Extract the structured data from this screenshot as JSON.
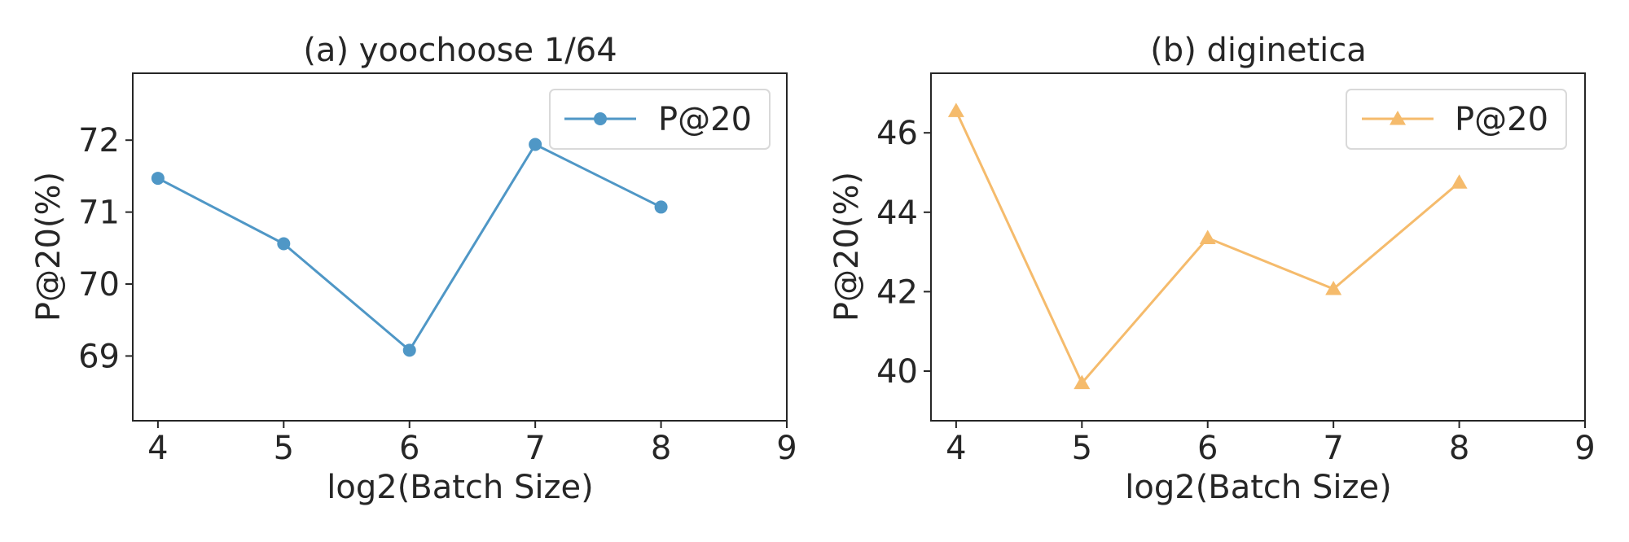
{
  "chart_data": [
    {
      "type": "line",
      "title": "(a) yoochoose 1/64",
      "xlabel": "log2(Batch Size)",
      "ylabel": "P@20(%)",
      "x": [
        4,
        5,
        6,
        7,
        8
      ],
      "series": [
        {
          "name": "P@20",
          "values": [
            71.47,
            70.56,
            69.08,
            71.94,
            71.07
          ],
          "color": "#4f97c6",
          "marker": "circle"
        }
      ],
      "xlim": [
        3.8,
        9
      ],
      "ylim": [
        68.1,
        72.93
      ],
      "xticks": [
        "4",
        "5",
        "6",
        "7",
        "8",
        "9"
      ],
      "yticks": [
        "69",
        "70",
        "71",
        "72"
      ],
      "legend": "top-right",
      "grid": false
    },
    {
      "type": "line",
      "title": "(b) diginetica",
      "xlabel": "log2(Batch Size)",
      "ylabel": "P@20(%)",
      "x": [
        4,
        5,
        6,
        7,
        8
      ],
      "series": [
        {
          "name": "P@20",
          "values": [
            46.55,
            39.7,
            43.35,
            42.07,
            44.75
          ],
          "color": "#f5bb6c",
          "marker": "triangle"
        }
      ],
      "xlim": [
        3.8,
        9
      ],
      "ylim": [
        38.75,
        47.5
      ],
      "xticks": [
        "4",
        "5",
        "6",
        "7",
        "8",
        "9"
      ],
      "yticks": [
        "40",
        "42",
        "44",
        "46"
      ],
      "legend": "top-right",
      "grid": false
    }
  ]
}
